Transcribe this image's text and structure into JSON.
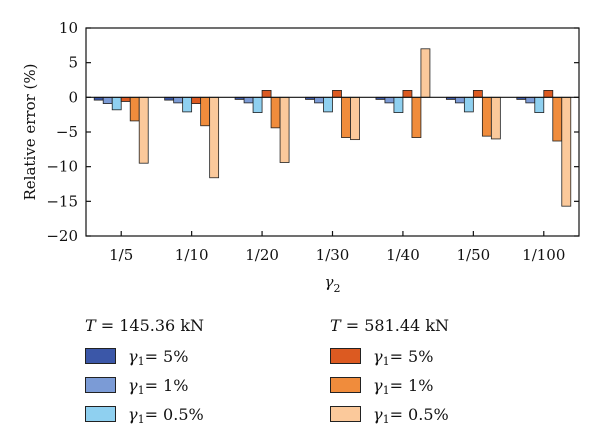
{
  "chart_data": {
    "type": "bar",
    "ylabel": "Relative error (%)",
    "xlabel_symbol": "γ",
    "xlabel_subscript": "2",
    "categories": [
      "1/5",
      "1/10",
      "1/20",
      "1/30",
      "1/40",
      "1/50",
      "1/100"
    ],
    "ylim": [
      -20,
      10
    ],
    "yticks": [
      10,
      5,
      0,
      -5,
      -10,
      -15,
      -20
    ],
    "grid": false,
    "legend_placement": "bottom",
    "series": [
      {
        "group": "T = 145.36 kN",
        "name": "γ1 = 5%",
        "color": "#3b57a8",
        "values": [
          -0.4,
          -0.4,
          -0.3,
          -0.3,
          -0.3,
          -0.3,
          -0.3
        ]
      },
      {
        "group": "T = 145.36 kN",
        "name": "γ1 = 1%",
        "color": "#7b9bd6",
        "values": [
          -0.9,
          -0.8,
          -0.8,
          -0.8,
          -0.8,
          -0.8,
          -0.8
        ]
      },
      {
        "group": "T = 145.36 kN",
        "name": "γ1 = 0.5%",
        "color": "#8fd0f0",
        "values": [
          -1.8,
          -2.1,
          -2.2,
          -2.1,
          -2.2,
          -2.1,
          -2.2
        ]
      },
      {
        "group": "T = 581.44 kN",
        "name": "γ1 = 5%",
        "color": "#dc5a21",
        "values": [
          -0.6,
          -0.9,
          1.0,
          1.0,
          1.0,
          1.0,
          1.0
        ]
      },
      {
        "group": "T = 581.44 kN",
        "name": "γ1 = 1%",
        "color": "#f08c3c",
        "values": [
          -3.4,
          -4.1,
          -4.4,
          -5.8,
          -5.8,
          -5.6,
          -6.3
        ]
      },
      {
        "group": "T = 581.44 kN",
        "name": "γ1 = 0.5%",
        "color": "#fbc99b",
        "values": [
          -9.5,
          -11.6,
          -9.4,
          -6.1,
          7.0,
          -6.0,
          -15.7
        ]
      }
    ]
  },
  "legend": {
    "groups": [
      {
        "title_symbol": "T",
        "title_value": " = 145.36 kN",
        "items": [
          {
            "symbol": "γ",
            "sub": "1",
            "label": " = 5%",
            "color": "#3b57a8"
          },
          {
            "symbol": "γ",
            "sub": "1",
            "label": " = 1%",
            "color": "#7b9bd6"
          },
          {
            "symbol": "γ",
            "sub": "1",
            "label": " = 0.5%",
            "color": "#8fd0f0"
          }
        ]
      },
      {
        "title_symbol": "T",
        "title_value": " = 581.44 kN",
        "items": [
          {
            "symbol": "γ",
            "sub": "1",
            "label": " = 5%",
            "color": "#dc5a21"
          },
          {
            "symbol": "γ",
            "sub": "1",
            "label": " = 1%",
            "color": "#f08c3c"
          },
          {
            "symbol": "γ",
            "sub": "1",
            "label": " = 0.5%",
            "color": "#fbc99b"
          }
        ]
      }
    ]
  }
}
